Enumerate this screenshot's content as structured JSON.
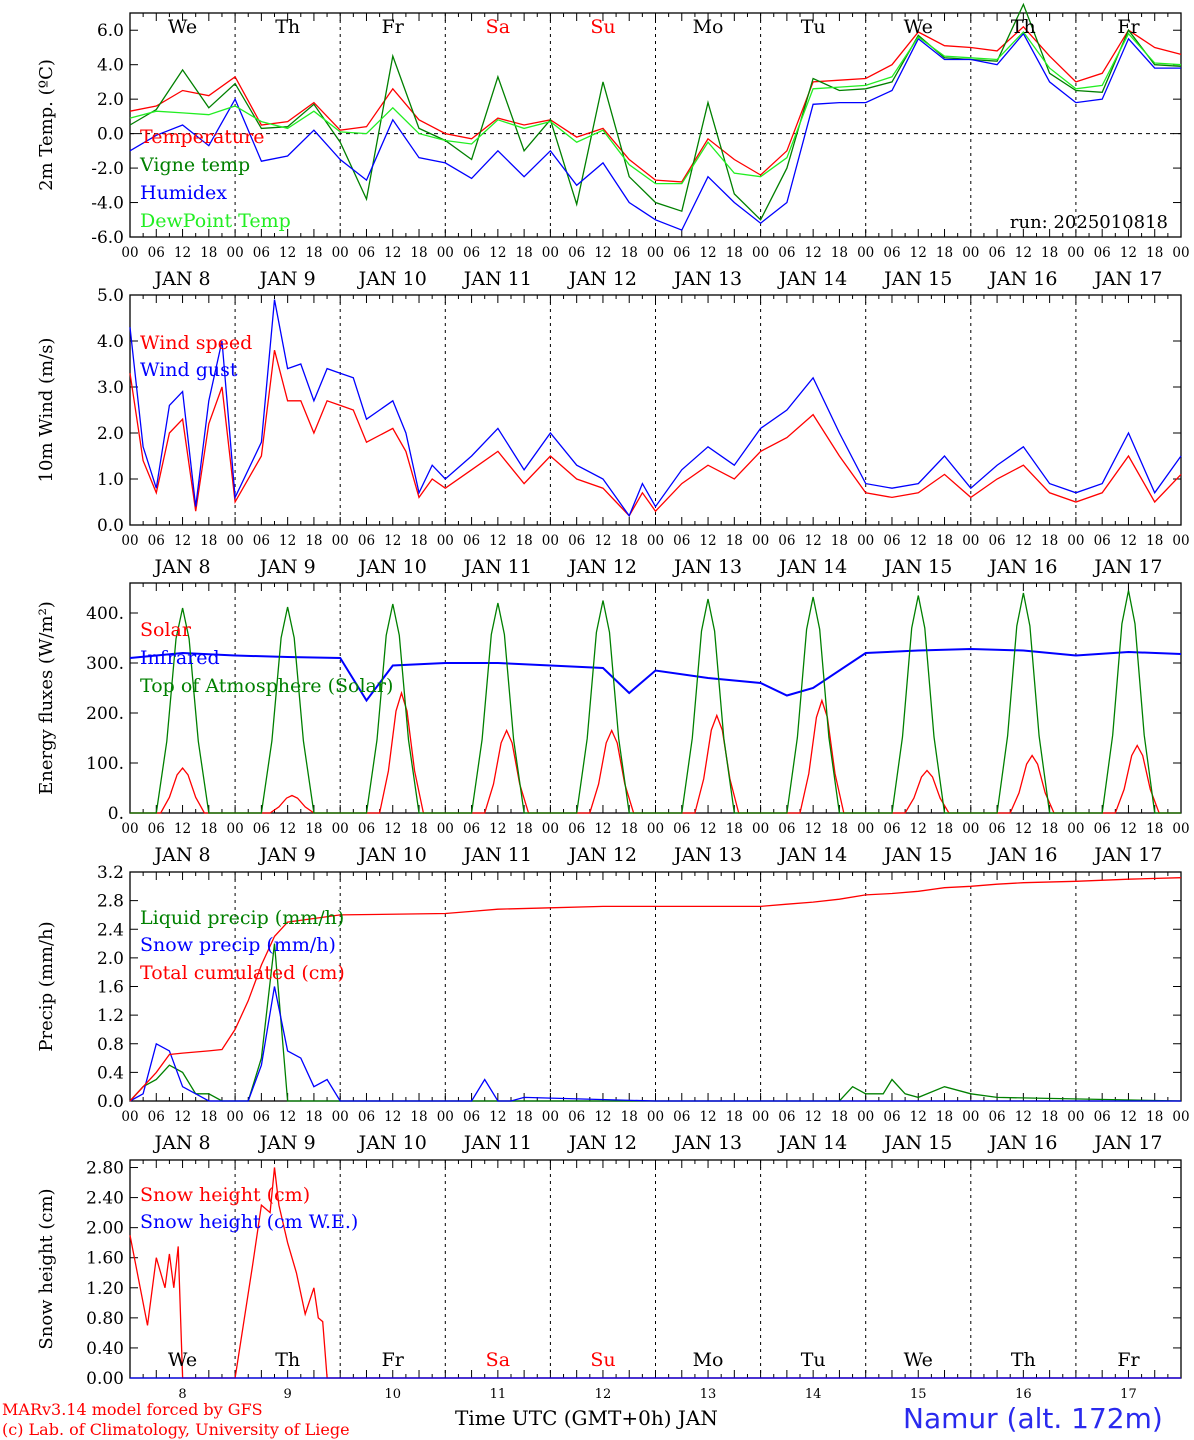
{
  "footer": {
    "credit_line1": "MARv3.14 model forced by GFS",
    "credit_line2": "(c) Lab. of Climatology, University of Liege",
    "x_title": "Time UTC (GMT+0h) JAN",
    "station": "Namur (alt. 172m)"
  },
  "axis": {
    "hour_ticks": [
      "00",
      "06",
      "12",
      "18"
    ],
    "final_hour_tick": "00",
    "date_labels": [
      "JAN  8",
      "JAN  9",
      "JAN 10",
      "JAN 11",
      "JAN 12",
      "JAN 13",
      "JAN 14",
      "JAN 15",
      "JAN 16",
      "JAN 17"
    ],
    "weekdays": [
      "We",
      "Th",
      "Fr",
      "Sa",
      "Su",
      "Mo",
      "Tu",
      "We",
      "Th",
      "Fr"
    ],
    "weekend_color": "#ff0000",
    "weekday_color": "#000000",
    "bottom_day_numbers": [
      "8",
      "9",
      "10",
      "11",
      "12",
      "13",
      "14",
      "15",
      "16",
      "17"
    ]
  },
  "colors": {
    "red": "#ff0000",
    "green": "#008000",
    "blue": "#0000ff",
    "light_green": "#22ee22"
  },
  "chart_data": [
    {
      "type": "line",
      "ylabel": "2m Temp. (ºC)",
      "yticks": [
        "6.0",
        "4.0",
        "2.0",
        "0.0",
        "-2.0",
        "-4.0",
        "-6.0"
      ],
      "ylim": [
        -6,
        7
      ],
      "x_unit": "hours since JAN 8 00 UTC",
      "xlim": [
        0,
        240
      ],
      "annotation": "run: 2025010818",
      "zero_line": true,
      "series": [
        {
          "name": "Temperature",
          "color": "#ff0000",
          "x": [
            0,
            6,
            12,
            18,
            24,
            30,
            36,
            42,
            48,
            54,
            60,
            66,
            72,
            78,
            84,
            90,
            96,
            102,
            108,
            114,
            120,
            126,
            132,
            138,
            144,
            150,
            156,
            162,
            168,
            174,
            180,
            186,
            192,
            198,
            204,
            210,
            216,
            222,
            228,
            234,
            240
          ],
          "y": [
            1.3,
            1.6,
            2.5,
            2.2,
            3.3,
            0.5,
            0.7,
            1.8,
            0.2,
            0.4,
            2.6,
            0.8,
            0.0,
            -0.3,
            0.9,
            0.5,
            0.8,
            -0.2,
            0.3,
            -1.5,
            -2.7,
            -2.8,
            -0.3,
            -1.5,
            -2.4,
            -1.0,
            3.0,
            3.1,
            3.2,
            4.0,
            5.9,
            5.1,
            5.0,
            4.8,
            6.2,
            4.5,
            3.0,
            3.5,
            6.0,
            5.0,
            4.6
          ]
        },
        {
          "name": "Vigne temp",
          "color": "#008000",
          "x": [
            0,
            6,
            12,
            18,
            24,
            30,
            36,
            42,
            48,
            54,
            60,
            66,
            72,
            78,
            84,
            90,
            96,
            102,
            108,
            114,
            120,
            126,
            132,
            138,
            144,
            150,
            156,
            162,
            168,
            174,
            180,
            186,
            192,
            198,
            204,
            210,
            216,
            222,
            228,
            234,
            240
          ],
          "y": [
            0.5,
            1.4,
            3.7,
            1.5,
            2.9,
            0.3,
            0.4,
            1.7,
            -0.5,
            -3.8,
            4.5,
            0.3,
            -0.4,
            -1.5,
            3.3,
            -1.0,
            0.8,
            -4.1,
            3.0,
            -2.5,
            -4.0,
            -4.5,
            1.8,
            -3.5,
            -5.0,
            -2.0,
            3.2,
            2.5,
            2.6,
            3.0,
            5.7,
            4.4,
            4.3,
            4.2,
            7.5,
            3.5,
            2.5,
            2.4,
            6.0,
            4.0,
            3.9
          ]
        },
        {
          "name": "Humidex",
          "color": "#0000ff",
          "x": [
            0,
            6,
            12,
            18,
            24,
            30,
            36,
            42,
            48,
            54,
            60,
            66,
            72,
            78,
            84,
            90,
            96,
            102,
            108,
            114,
            120,
            126,
            132,
            138,
            144,
            150,
            156,
            162,
            168,
            174,
            180,
            186,
            192,
            198,
            204,
            210,
            216,
            222,
            228,
            234,
            240
          ],
          "y": [
            -1.0,
            -0.1,
            0.5,
            -0.7,
            2.0,
            -1.6,
            -1.3,
            0.2,
            -1.5,
            -2.7,
            0.8,
            -1.4,
            -1.7,
            -2.6,
            -1.0,
            -2.5,
            -1.0,
            -3.0,
            -1.7,
            -4.0,
            -5.0,
            -5.6,
            -2.5,
            -4.0,
            -5.2,
            -4.0,
            1.7,
            1.8,
            1.8,
            2.5,
            5.5,
            4.3,
            4.3,
            4.0,
            5.8,
            3.0,
            1.8,
            2.0,
            5.5,
            3.8,
            3.8
          ]
        },
        {
          "name": "DewPoint Temp",
          "color": "#22ee22",
          "x": [
            0,
            6,
            12,
            18,
            24,
            30,
            36,
            42,
            48,
            54,
            60,
            66,
            72,
            78,
            84,
            90,
            96,
            102,
            108,
            114,
            120,
            126,
            132,
            138,
            144,
            150,
            156,
            162,
            168,
            174,
            180,
            186,
            192,
            198,
            204,
            210,
            216,
            222,
            228,
            234,
            240
          ],
          "y": [
            0.9,
            1.3,
            1.2,
            1.1,
            1.6,
            0.7,
            0.3,
            1.3,
            0.1,
            0.0,
            1.5,
            0.0,
            -0.4,
            -0.6,
            0.8,
            0.3,
            0.7,
            -0.5,
            0.2,
            -1.8,
            -2.9,
            -2.9,
            -0.5,
            -2.3,
            -2.5,
            -1.4,
            2.6,
            2.7,
            2.8,
            3.3,
            5.6,
            4.5,
            4.4,
            4.3,
            5.9,
            3.8,
            2.6,
            2.8,
            5.8,
            4.1,
            4.0
          ]
        }
      ]
    },
    {
      "type": "line",
      "ylabel": "10m Wind (m/s)",
      "yticks": [
        "5.0",
        "4.0",
        "3.0",
        "2.0",
        "1.0",
        "0.0"
      ],
      "ylim": [
        0,
        5
      ],
      "series": [
        {
          "name": "Wind speed",
          "color": "#ff0000",
          "x": [
            0,
            3,
            6,
            9,
            12,
            15,
            18,
            21,
            24,
            30,
            33,
            36,
            39,
            42,
            45,
            48,
            51,
            54,
            60,
            63,
            66,
            69,
            72,
            78,
            84,
            90,
            96,
            102,
            108,
            111,
            114,
            117,
            120,
            126,
            132,
            138,
            144,
            150,
            156,
            162,
            168,
            174,
            180,
            186,
            192,
            198,
            204,
            210,
            216,
            222,
            228,
            234,
            240
          ],
          "y": [
            3.3,
            1.4,
            0.7,
            2.0,
            2.3,
            0.3,
            2.2,
            3.0,
            0.5,
            1.5,
            3.8,
            2.7,
            2.7,
            2.0,
            2.7,
            2.6,
            2.5,
            1.8,
            2.1,
            1.6,
            0.6,
            1.0,
            0.8,
            1.2,
            1.6,
            0.9,
            1.5,
            1.0,
            0.8,
            0.5,
            0.2,
            0.7,
            0.3,
            0.9,
            1.3,
            1.0,
            1.6,
            1.9,
            2.4,
            1.5,
            0.7,
            0.6,
            0.7,
            1.1,
            0.6,
            1.0,
            1.3,
            0.7,
            0.5,
            0.7,
            1.5,
            0.5,
            1.1
          ]
        },
        {
          "name": "Wind gust",
          "color": "#0000ff",
          "x": [
            0,
            3,
            6,
            9,
            12,
            15,
            18,
            21,
            24,
            30,
            33,
            36,
            39,
            42,
            45,
            48,
            51,
            54,
            60,
            63,
            66,
            69,
            72,
            78,
            84,
            90,
            96,
            102,
            108,
            111,
            114,
            117,
            120,
            126,
            132,
            138,
            144,
            150,
            156,
            162,
            168,
            174,
            180,
            186,
            192,
            198,
            204,
            210,
            216,
            222,
            228,
            234,
            240
          ],
          "y": [
            4.3,
            1.7,
            0.8,
            2.6,
            2.9,
            0.4,
            2.7,
            4.0,
            0.6,
            1.8,
            4.9,
            3.4,
            3.5,
            2.7,
            3.4,
            3.3,
            3.2,
            2.3,
            2.7,
            2.0,
            0.7,
            1.3,
            1.0,
            1.5,
            2.1,
            1.2,
            2.0,
            1.3,
            1.0,
            0.6,
            0.2,
            0.9,
            0.4,
            1.2,
            1.7,
            1.3,
            2.1,
            2.5,
            3.2,
            2.0,
            0.9,
            0.8,
            0.9,
            1.5,
            0.8,
            1.3,
            1.7,
            0.9,
            0.7,
            0.9,
            2.0,
            0.7,
            1.5
          ]
        }
      ]
    },
    {
      "type": "line",
      "ylabel": "Energy fluxes (W/m²)",
      "yticks": [
        "400.",
        "300.",
        "200.",
        "100.",
        "0."
      ],
      "ylim": [
        0,
        460
      ],
      "series": [
        {
          "name": "Solar",
          "color": "#ff0000",
          "peaks_at_hour": [
            12,
            37,
            62,
            86,
            110,
            134,
            158,
            182,
            206,
            230
          ],
          "peak_values": [
            90,
            35,
            240,
            165,
            165,
            195,
            225,
            85,
            115,
            135
          ]
        },
        {
          "name": "Infrared",
          "color": "#0000ff",
          "x": [
            0,
            12,
            24,
            36,
            48,
            54,
            60,
            72,
            84,
            96,
            108,
            114,
            120,
            132,
            144,
            150,
            156,
            168,
            180,
            192,
            204,
            216,
            228,
            240
          ],
          "y": [
            310,
            320,
            315,
            312,
            310,
            225,
            295,
            300,
            300,
            295,
            290,
            240,
            285,
            270,
            260,
            235,
            250,
            320,
            325,
            328,
            325,
            315,
            322,
            318
          ]
        },
        {
          "name": "Top of Atmosphere (Solar)",
          "color": "#008000",
          "peaks_at_hour": [
            12,
            36,
            60,
            84,
            108,
            132,
            156,
            180,
            204,
            228
          ],
          "peak_values": [
            410,
            412,
            418,
            420,
            425,
            428,
            432,
            435,
            440,
            445
          ]
        }
      ]
    },
    {
      "type": "line",
      "ylabel": "Precip (mm/h)",
      "yticks": [
        "3.2",
        "2.8",
        "2.4",
        "2.0",
        "1.6",
        "1.2",
        "0.8",
        "0.4",
        "0.0"
      ],
      "ylim": [
        0,
        3.2
      ],
      "series": [
        {
          "name": "Liquid precip (mm/h)",
          "color": "#008000",
          "x": [
            0,
            3,
            6,
            9,
            12,
            15,
            18,
            21,
            24,
            27,
            30,
            33,
            36,
            162,
            165,
            168,
            172,
            174,
            177,
            180,
            186,
            192,
            198,
            240
          ],
          "y": [
            0,
            0.2,
            0.3,
            0.5,
            0.4,
            0.1,
            0.1,
            0.0,
            0.0,
            0.0,
            0.6,
            2.2,
            0.0,
            0.0,
            0.2,
            0.1,
            0.1,
            0.3,
            0.1,
            0.05,
            0.2,
            0.1,
            0.05,
            0.0
          ]
        },
        {
          "name": "Snow precip (mm/h)",
          "color": "#0000ff",
          "x": [
            0,
            3,
            6,
            9,
            12,
            15,
            18,
            24,
            27,
            30,
            33,
            36,
            39,
            42,
            45,
            48,
            51,
            54,
            78,
            81,
            84,
            87,
            90,
            120,
            240
          ],
          "y": [
            0,
            0.1,
            0.8,
            0.7,
            0.2,
            0.1,
            0.0,
            0.0,
            0.0,
            0.5,
            1.6,
            0.7,
            0.6,
            0.2,
            0.3,
            0.0,
            0.0,
            0.0,
            0.0,
            0.3,
            0.0,
            0.0,
            0.05,
            0.0,
            0.0
          ]
        },
        {
          "name": "Total cumulated (cm)",
          "color": "#ff0000",
          "x": [
            0,
            6,
            9,
            12,
            18,
            21,
            24,
            27,
            30,
            33,
            36,
            42,
            48,
            72,
            78,
            84,
            96,
            108,
            144,
            150,
            156,
            162,
            168,
            174,
            180,
            186,
            192,
            198,
            204,
            216,
            228,
            240
          ],
          "y": [
            0.0,
            0.4,
            0.65,
            0.67,
            0.7,
            0.72,
            1.0,
            1.4,
            1.9,
            2.3,
            2.5,
            2.55,
            2.6,
            2.62,
            2.65,
            2.68,
            2.7,
            2.72,
            2.72,
            2.75,
            2.78,
            2.82,
            2.88,
            2.9,
            2.93,
            2.98,
            3.0,
            3.03,
            3.05,
            3.07,
            3.1,
            3.12
          ]
        }
      ]
    },
    {
      "type": "line",
      "ylabel": "Snow height (cm)",
      "yticks": [
        "2.80",
        "2.40",
        "2.00",
        "1.60",
        "1.20",
        "0.80",
        "0.40",
        "0.00"
      ],
      "ylim": [
        0,
        2.9
      ],
      "series": [
        {
          "name": "Snow height (cm)",
          "color": "#ff0000",
          "x": [
            0,
            4,
            6,
            8,
            9,
            10,
            11,
            12,
            13,
            14,
            24,
            28,
            30,
            32,
            33,
            34,
            36,
            38,
            40,
            42,
            43,
            44,
            45,
            48,
            240
          ],
          "y": [
            1.9,
            0.7,
            1.6,
            1.2,
            1.65,
            1.2,
            1.75,
            0.0,
            0.0,
            0.0,
            0.0,
            1.5,
            2.3,
            2.2,
            2.8,
            2.3,
            1.8,
            1.4,
            0.85,
            1.2,
            0.8,
            0.75,
            0.0,
            0.0,
            0.0
          ]
        },
        {
          "name": "Snow height (cm W.E.)",
          "color": "#0000ff",
          "x": [
            0,
            240
          ],
          "y": [
            0.0,
            0.0
          ]
        }
      ]
    }
  ]
}
